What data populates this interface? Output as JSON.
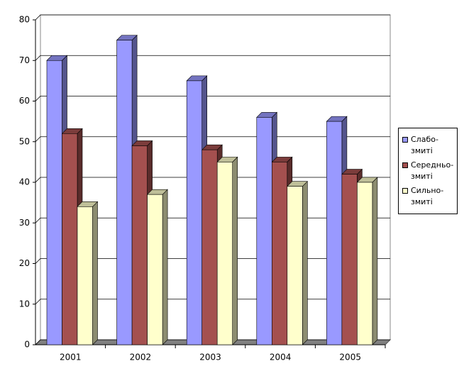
{
  "chart_data": {
    "type": "bar3d",
    "categories": [
      "2001",
      "2002",
      "2003",
      "2004",
      "2005"
    ],
    "series": [
      {
        "name": "Слабо- змиті",
        "color": "#9999ff",
        "values": [
          70,
          75,
          65,
          56,
          55
        ]
      },
      {
        "name": "Середньо- змиті",
        "color": "#a4504f",
        "values": [
          52,
          49,
          48,
          45,
          42
        ]
      },
      {
        "name": "Сильно- змиті",
        "color": "#ffffcc",
        "values": [
          34,
          37,
          45,
          39,
          40
        ]
      }
    ],
    "ylim": [
      0,
      80
    ],
    "yticks": [
      0,
      10,
      20,
      30,
      40,
      50,
      60,
      70,
      80
    ],
    "grid": true,
    "legend": "right"
  }
}
